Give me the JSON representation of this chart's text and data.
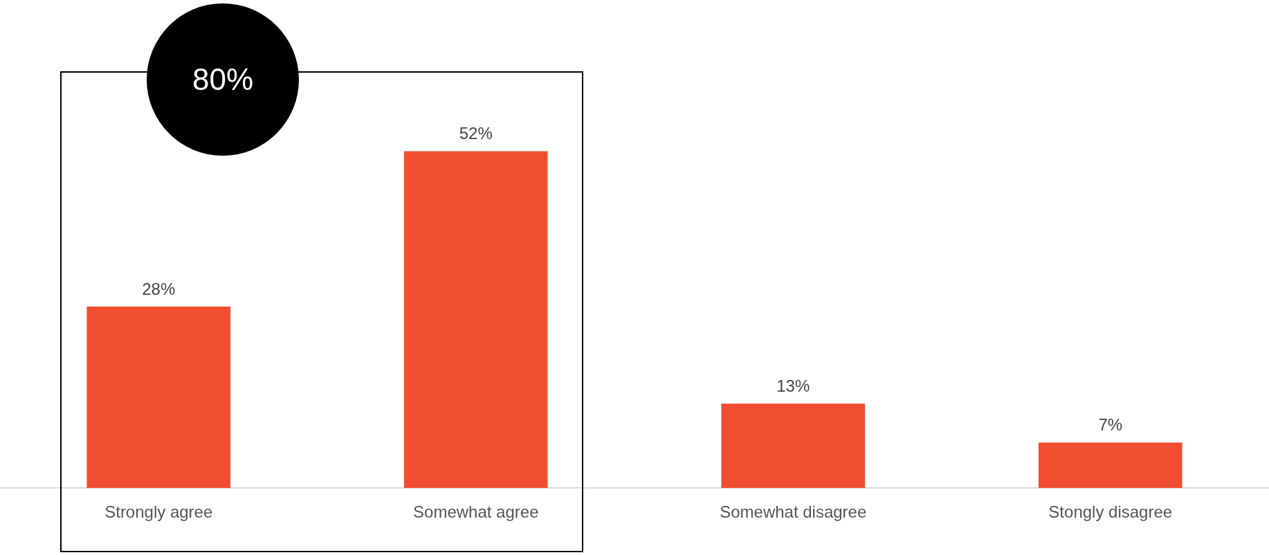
{
  "chart_data": {
    "type": "bar",
    "categories": [
      "Strongly agree",
      "Somewhat agree",
      "Somewhat disagree",
      "Stongly disagree"
    ],
    "values": [
      28,
      52,
      13,
      7
    ],
    "color": "#f14d31",
    "value_labels": [
      "28%",
      "52%",
      "13%",
      "7%"
    ],
    "annotations": [
      "80%"
    ],
    "grid": false
  }
}
